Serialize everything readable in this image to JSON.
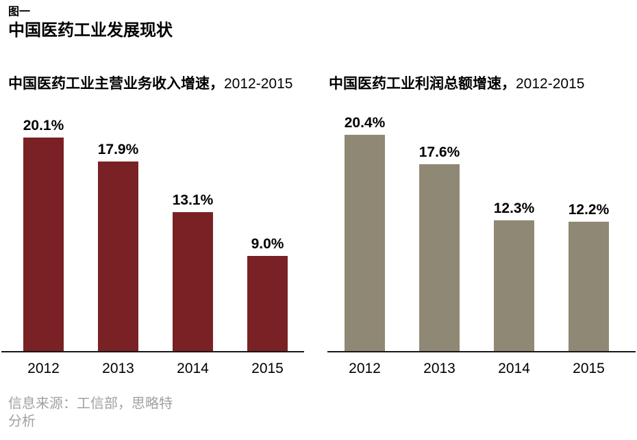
{
  "figure": {
    "label": "图一",
    "title": "中国医药工业发展现状"
  },
  "chart_data": [
    {
      "type": "bar",
      "title": "中国医药工业主营业务收入增速，2012-2015",
      "title_cjk": "中国医药工业主营业务收入增速，",
      "title_period": "2012-2015",
      "categories": [
        "2012",
        "2013",
        "2014",
        "2015"
      ],
      "values": [
        20.1,
        17.9,
        13.1,
        9.0
      ],
      "value_labels": [
        "20.1%",
        "17.9%",
        "13.1%",
        "9.0%"
      ],
      "bar_color": "#7a2125",
      "ylim": [
        0,
        21
      ],
      "grid": false,
      "legend": "none"
    },
    {
      "type": "bar",
      "title": "中国医药工业利润总额增速，2012-2015",
      "title_cjk": "中国医药工业利润总额增速，",
      "title_period": "2012-2015",
      "categories": [
        "2012",
        "2013",
        "2014",
        "2015"
      ],
      "values": [
        20.4,
        17.6,
        12.3,
        12.2
      ],
      "value_labels": [
        "20.4%",
        "17.6%",
        "12.3%",
        "12.2%"
      ],
      "bar_color": "#8f8874",
      "ylim": [
        0,
        21
      ],
      "grid": false,
      "legend": "none"
    }
  ],
  "source": {
    "line1": "信息来源：工信部，思略特",
    "line2": "分析"
  },
  "colors": {
    "revenue_bar": "#7a2125",
    "profit_bar": "#8f8874",
    "axis": "#161616",
    "source_text": "#a0a29f",
    "text": "#000000",
    "background": "#ffffff"
  }
}
